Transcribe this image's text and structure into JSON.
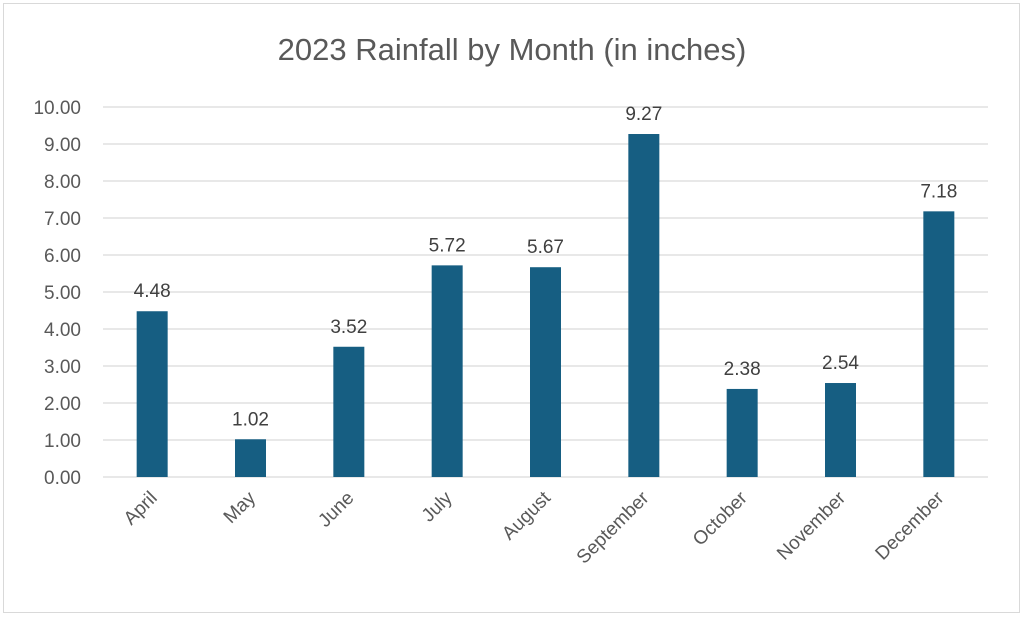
{
  "chart_data": {
    "type": "bar",
    "title": "2023 Rainfall by Month (in inches)",
    "categories": [
      "April",
      "May",
      "June",
      "July",
      "August",
      "September",
      "October",
      "November",
      "December"
    ],
    "values": [
      4.48,
      1.02,
      3.52,
      5.72,
      5.67,
      9.27,
      2.38,
      2.54,
      7.18
    ],
    "data_labels": [
      "4.48",
      "1.02",
      "3.52",
      "5.72",
      "5.67",
      "9.27",
      "2.38",
      "2.54",
      "7.18"
    ],
    "xlabel": "",
    "ylabel": "",
    "ylim": [
      0,
      10
    ],
    "y_ticks": [
      "0.00",
      "1.00",
      "2.00",
      "3.00",
      "4.00",
      "5.00",
      "6.00",
      "7.00",
      "8.00",
      "9.00",
      "10.00"
    ],
    "grid": true,
    "legend": "none",
    "bar_color": "#165E82"
  }
}
